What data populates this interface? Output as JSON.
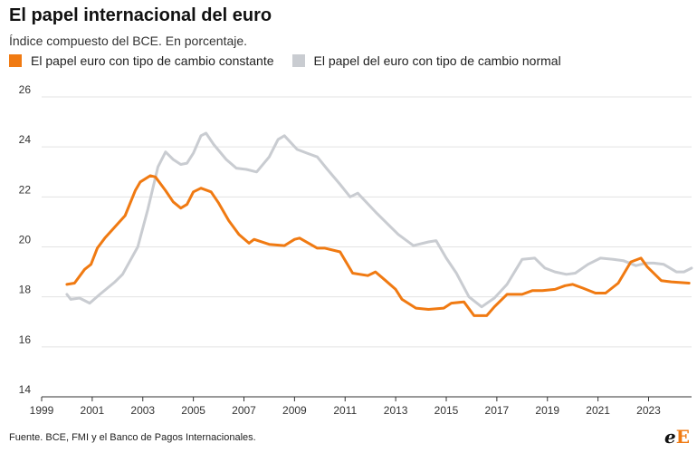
{
  "header": {
    "title": "El papel internacional del euro",
    "subtitle": "Índice compuesto del BCE. En porcentaje."
  },
  "source": "Fuente. BCE, FMI y el Banco de Pagos Internacionales.",
  "logo": {
    "part1": "e",
    "part2": "E"
  },
  "colors": {
    "orange": "#f07a12",
    "gray": "#c9ccd1",
    "grid": "#e3e3e3"
  },
  "chart_data": {
    "type": "line",
    "title": "El papel internacional del euro",
    "subtitle": "Índice compuesto del BCE. En porcentaje.",
    "xlim": [
      1999,
      2024.7
    ],
    "ylim": [
      14,
      26
    ],
    "x_ticks": [
      1999,
      2001,
      2003,
      2005,
      2007,
      2009,
      2011,
      2013,
      2015,
      2017,
      2019,
      2021,
      2023
    ],
    "y_ticks": [
      14,
      16,
      18,
      20,
      22,
      24,
      26
    ],
    "grid": true,
    "legend_position": "top-left",
    "series": [
      {
        "name": "El papel euro con tipo de cambio constante",
        "color": "#f07a12",
        "points": [
          [
            2000.0,
            18.5
          ],
          [
            2000.3,
            18.55
          ],
          [
            2000.7,
            19.1
          ],
          [
            2000.95,
            19.3
          ],
          [
            2001.2,
            19.95
          ],
          [
            2001.5,
            20.35
          ],
          [
            2001.9,
            20.8
          ],
          [
            2002.3,
            21.25
          ],
          [
            2002.7,
            22.25
          ],
          [
            2002.9,
            22.6
          ],
          [
            2003.3,
            22.85
          ],
          [
            2003.5,
            22.8
          ],
          [
            2003.9,
            22.25
          ],
          [
            2004.2,
            21.8
          ],
          [
            2004.5,
            21.55
          ],
          [
            2004.75,
            21.7
          ],
          [
            2005.0,
            22.2
          ],
          [
            2005.3,
            22.35
          ],
          [
            2005.7,
            22.2
          ],
          [
            2006.0,
            21.75
          ],
          [
            2006.4,
            21.05
          ],
          [
            2006.8,
            20.5
          ],
          [
            2007.2,
            20.15
          ],
          [
            2007.4,
            20.3
          ],
          [
            2008.0,
            20.1
          ],
          [
            2008.6,
            20.05
          ],
          [
            2009.0,
            20.3
          ],
          [
            2009.2,
            20.35
          ],
          [
            2009.9,
            19.95
          ],
          [
            2010.2,
            19.95
          ],
          [
            2010.8,
            19.8
          ],
          [
            2011.3,
            18.95
          ],
          [
            2011.9,
            18.85
          ],
          [
            2012.2,
            19.0
          ],
          [
            2012.6,
            18.65
          ],
          [
            2013.0,
            18.3
          ],
          [
            2013.25,
            17.9
          ],
          [
            2013.8,
            17.55
          ],
          [
            2014.3,
            17.5
          ],
          [
            2014.9,
            17.55
          ],
          [
            2015.2,
            17.75
          ],
          [
            2015.7,
            17.8
          ],
          [
            2016.1,
            17.25
          ],
          [
            2016.6,
            17.25
          ],
          [
            2016.9,
            17.6
          ],
          [
            2017.4,
            18.1
          ],
          [
            2018.0,
            18.1
          ],
          [
            2018.4,
            18.25
          ],
          [
            2018.8,
            18.25
          ],
          [
            2019.3,
            18.3
          ],
          [
            2019.7,
            18.45
          ],
          [
            2020.0,
            18.5
          ],
          [
            2020.4,
            18.35
          ],
          [
            2020.9,
            18.15
          ],
          [
            2021.3,
            18.15
          ],
          [
            2021.8,
            18.55
          ],
          [
            2022.3,
            19.4
          ],
          [
            2022.7,
            19.55
          ],
          [
            2022.95,
            19.2
          ],
          [
            2023.5,
            18.65
          ],
          [
            2023.9,
            18.6
          ],
          [
            2024.6,
            18.55
          ]
        ]
      },
      {
        "name": "El papel del euro con tipo de cambio normal",
        "color": "#c9ccd1",
        "points": [
          [
            2000.0,
            18.1
          ],
          [
            2000.15,
            17.9
          ],
          [
            2000.5,
            17.95
          ],
          [
            2000.9,
            17.75
          ],
          [
            2001.3,
            18.1
          ],
          [
            2001.9,
            18.6
          ],
          [
            2002.2,
            18.9
          ],
          [
            2002.8,
            20.0
          ],
          [
            2003.2,
            21.5
          ],
          [
            2003.6,
            23.2
          ],
          [
            2003.9,
            23.8
          ],
          [
            2004.2,
            23.5
          ],
          [
            2004.5,
            23.3
          ],
          [
            2004.75,
            23.35
          ],
          [
            2005.0,
            23.75
          ],
          [
            2005.3,
            24.45
          ],
          [
            2005.5,
            24.55
          ],
          [
            2005.8,
            24.1
          ],
          [
            2006.3,
            23.5
          ],
          [
            2006.7,
            23.15
          ],
          [
            2007.1,
            23.1
          ],
          [
            2007.5,
            23.0
          ],
          [
            2008.0,
            23.6
          ],
          [
            2008.35,
            24.3
          ],
          [
            2008.6,
            24.45
          ],
          [
            2009.1,
            23.9
          ],
          [
            2009.5,
            23.75
          ],
          [
            2009.9,
            23.6
          ],
          [
            2010.3,
            23.1
          ],
          [
            2010.8,
            22.5
          ],
          [
            2011.2,
            22.0
          ],
          [
            2011.5,
            22.15
          ],
          [
            2012.2,
            21.4
          ],
          [
            2012.8,
            20.8
          ],
          [
            2013.1,
            20.5
          ],
          [
            2013.7,
            20.05
          ],
          [
            2014.3,
            20.2
          ],
          [
            2014.6,
            20.25
          ],
          [
            2015.0,
            19.55
          ],
          [
            2015.4,
            18.95
          ],
          [
            2015.9,
            18.0
          ],
          [
            2016.4,
            17.6
          ],
          [
            2016.9,
            17.95
          ],
          [
            2017.4,
            18.5
          ],
          [
            2018.0,
            19.5
          ],
          [
            2018.5,
            19.55
          ],
          [
            2018.9,
            19.15
          ],
          [
            2019.3,
            19.0
          ],
          [
            2019.75,
            18.9
          ],
          [
            2020.1,
            18.95
          ],
          [
            2020.6,
            19.3
          ],
          [
            2021.1,
            19.55
          ],
          [
            2021.6,
            19.5
          ],
          [
            2022.0,
            19.45
          ],
          [
            2022.5,
            19.25
          ],
          [
            2022.9,
            19.35
          ],
          [
            2023.2,
            19.35
          ],
          [
            2023.6,
            19.3
          ],
          [
            2024.1,
            19.0
          ],
          [
            2024.4,
            19.0
          ],
          [
            2024.7,
            19.15
          ]
        ]
      }
    ]
  }
}
